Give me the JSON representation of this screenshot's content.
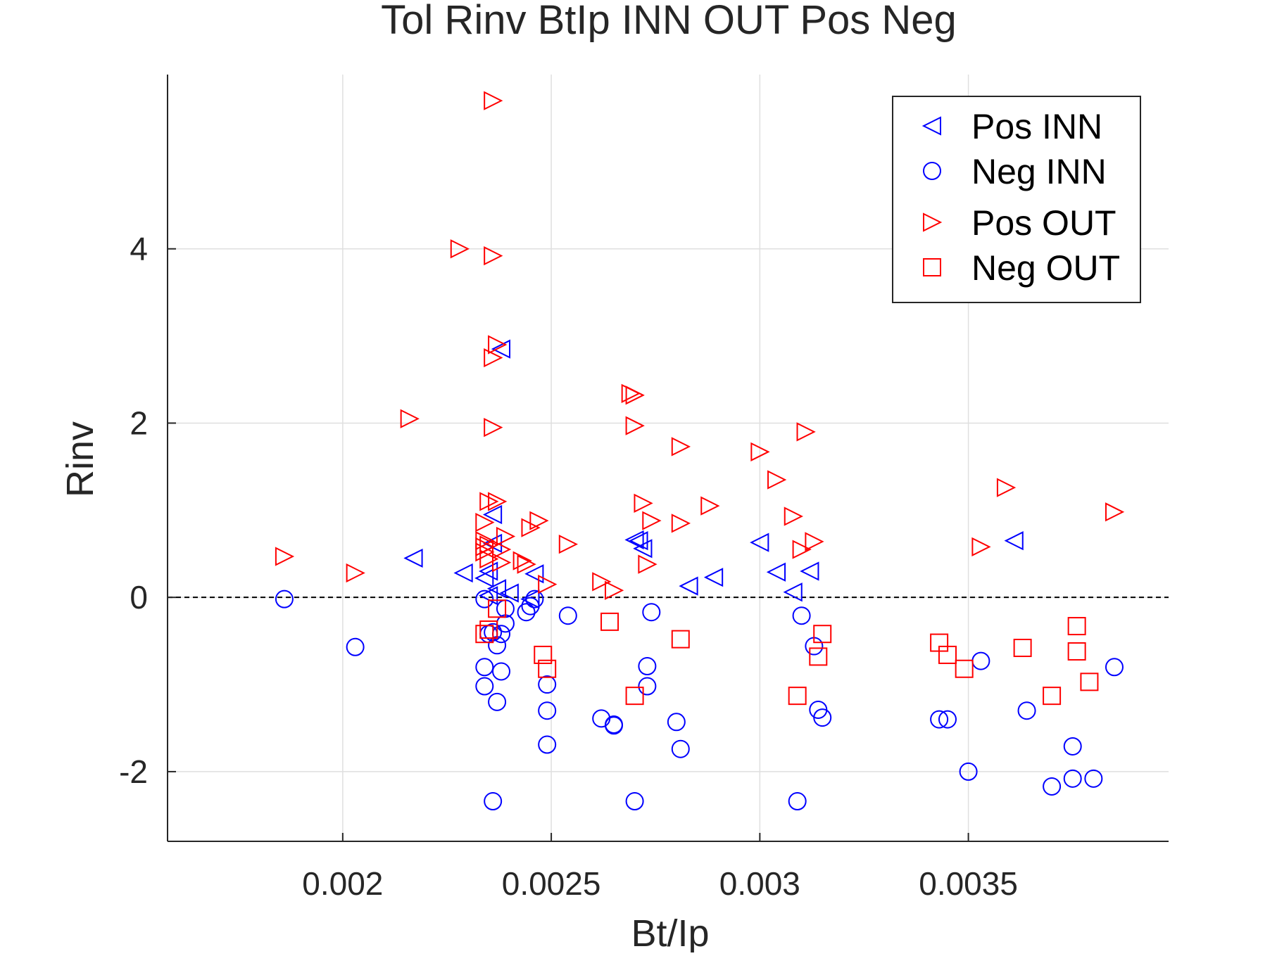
{
  "chart_data": {
    "type": "scatter",
    "title": "Tol Rinv BtIp INN OUT Pos Neg",
    "xlabel": "Bt/Ip",
    "ylabel": "Rinv",
    "xlim": [
      0.00158,
      0.00398
    ],
    "ylim": [
      -2.8,
      6.0
    ],
    "xticks": [
      0.002,
      0.0025,
      0.003,
      0.0035
    ],
    "xtick_labels": [
      "0.002",
      "0.0025",
      "0.003",
      "0.0035"
    ],
    "yticks": [
      -2,
      0,
      2,
      4
    ],
    "ytick_labels": [
      "-2",
      "0",
      "2",
      "4"
    ],
    "grid": true,
    "zero_line": {
      "y": 0,
      "style": "dashed",
      "color": "#000000"
    },
    "legend_position": "top-right",
    "series": [
      {
        "name": "Pos INN",
        "marker": "triangle-left",
        "color": "#0000ff",
        "points": [
          [
            0.00217,
            0.45
          ],
          [
            0.00229,
            0.28
          ],
          [
            0.00234,
            0.22
          ],
          [
            0.00235,
            0.3
          ],
          [
            0.00236,
            0.95
          ],
          [
            0.00235,
            0.02
          ],
          [
            0.00237,
            0.1
          ],
          [
            0.00238,
            2.85
          ],
          [
            0.0024,
            0.05
          ],
          [
            0.00236,
            0.62
          ],
          [
            0.00246,
            0.27
          ],
          [
            0.00245,
            -0.02
          ],
          [
            0.0027,
            0.66
          ],
          [
            0.00271,
            0.65
          ],
          [
            0.00272,
            0.56
          ],
          [
            0.00283,
            0.13
          ],
          [
            0.00289,
            0.23
          ],
          [
            0.003,
            0.63
          ],
          [
            0.00304,
            0.29
          ],
          [
            0.00308,
            0.06
          ],
          [
            0.00312,
            0.3
          ],
          [
            0.00361,
            0.65
          ]
        ]
      },
      {
        "name": "Neg INN",
        "marker": "circle",
        "color": "#0000ff",
        "points": [
          [
            0.00186,
            -0.02
          ],
          [
            0.00203,
            -0.57
          ],
          [
            0.00234,
            -0.02
          ],
          [
            0.00235,
            -0.42
          ],
          [
            0.00236,
            -0.4
          ],
          [
            0.00234,
            -0.8
          ],
          [
            0.00234,
            -1.02
          ],
          [
            0.00237,
            -1.2
          ],
          [
            0.00238,
            -0.85
          ],
          [
            0.00237,
            -0.55
          ],
          [
            0.00238,
            -0.42
          ],
          [
            0.00239,
            -0.13
          ],
          [
            0.00239,
            -0.3
          ],
          [
            0.00236,
            -2.34
          ],
          [
            0.00244,
            -0.17
          ],
          [
            0.00245,
            -0.1
          ],
          [
            0.00246,
            -0.02
          ],
          [
            0.00249,
            -1.0
          ],
          [
            0.00249,
            -1.3
          ],
          [
            0.00249,
            -1.69
          ],
          [
            0.00254,
            -0.21
          ],
          [
            0.00262,
            -1.39
          ],
          [
            0.00265,
            -1.46
          ],
          [
            0.00265,
            -1.47
          ],
          [
            0.0027,
            -2.34
          ],
          [
            0.00273,
            -0.79
          ],
          [
            0.00273,
            -1.02
          ],
          [
            0.00274,
            -0.17
          ],
          [
            0.0028,
            -1.43
          ],
          [
            0.00281,
            -1.74
          ],
          [
            0.00309,
            -2.34
          ],
          [
            0.0031,
            -0.21
          ],
          [
            0.00313,
            -0.56
          ],
          [
            0.00314,
            -1.29
          ],
          [
            0.00315,
            -1.38
          ],
          [
            0.00343,
            -1.4
          ],
          [
            0.00345,
            -1.4
          ],
          [
            0.0035,
            -2.0
          ],
          [
            0.00353,
            -0.73
          ],
          [
            0.00364,
            -1.3
          ],
          [
            0.0037,
            -2.17
          ],
          [
            0.00375,
            -1.71
          ],
          [
            0.00375,
            -2.08
          ],
          [
            0.0038,
            -2.08
          ],
          [
            0.00385,
            -0.8
          ]
        ]
      },
      {
        "name": "Pos OUT",
        "marker": "triangle-right",
        "color": "#ff0000",
        "points": [
          [
            0.00186,
            0.47
          ],
          [
            0.00203,
            0.28
          ],
          [
            0.00216,
            2.05
          ],
          [
            0.00228,
            4.0
          ],
          [
            0.00234,
            0.86
          ],
          [
            0.00234,
            0.65
          ],
          [
            0.00234,
            0.58
          ],
          [
            0.00234,
            0.52
          ],
          [
            0.00235,
            0.6
          ],
          [
            0.00235,
            0.44
          ],
          [
            0.00235,
            1.1
          ],
          [
            0.00236,
            5.7
          ],
          [
            0.00236,
            3.92
          ],
          [
            0.00236,
            1.95
          ],
          [
            0.00237,
            2.9
          ],
          [
            0.00236,
            2.75
          ],
          [
            0.00237,
            1.1
          ],
          [
            0.00238,
            0.55
          ],
          [
            0.00238,
            0.4
          ],
          [
            0.00239,
            0.7
          ],
          [
            0.00243,
            0.42
          ],
          [
            0.00244,
            0.38
          ],
          [
            0.00245,
            0.8
          ],
          [
            0.00247,
            0.88
          ],
          [
            0.00249,
            0.15
          ],
          [
            0.00254,
            0.61
          ],
          [
            0.00262,
            0.18
          ],
          [
            0.00265,
            0.08
          ],
          [
            0.00269,
            2.34
          ],
          [
            0.0027,
            2.32
          ],
          [
            0.0027,
            1.97
          ],
          [
            0.00272,
            1.08
          ],
          [
            0.00273,
            0.38
          ],
          [
            0.00274,
            0.88
          ],
          [
            0.00281,
            1.73
          ],
          [
            0.00281,
            0.85
          ],
          [
            0.00288,
            1.05
          ],
          [
            0.003,
            1.67
          ],
          [
            0.00304,
            1.35
          ],
          [
            0.00308,
            0.93
          ],
          [
            0.0031,
            0.55
          ],
          [
            0.00311,
            1.9
          ],
          [
            0.00313,
            0.64
          ],
          [
            0.00353,
            0.58
          ],
          [
            0.00359,
            1.26
          ],
          [
            0.00385,
            0.98
          ]
        ]
      },
      {
        "name": "Neg OUT",
        "marker": "square",
        "color": "#ff0000",
        "points": [
          [
            0.00234,
            -0.42
          ],
          [
            0.00235,
            -0.37
          ],
          [
            0.00237,
            -0.13
          ],
          [
            0.00248,
            -0.66
          ],
          [
            0.00249,
            -0.82
          ],
          [
            0.00264,
            -0.28
          ],
          [
            0.0027,
            -1.13
          ],
          [
            0.00281,
            -0.48
          ],
          [
            0.00309,
            -1.13
          ],
          [
            0.00314,
            -0.68
          ],
          [
            0.00315,
            -0.42
          ],
          [
            0.00343,
            -0.52
          ],
          [
            0.00345,
            -0.66
          ],
          [
            0.00349,
            -0.82
          ],
          [
            0.00363,
            -0.58
          ],
          [
            0.0037,
            -1.13
          ],
          [
            0.00376,
            -0.33
          ],
          [
            0.00376,
            -0.62
          ],
          [
            0.00379,
            -0.97
          ]
        ]
      }
    ]
  }
}
